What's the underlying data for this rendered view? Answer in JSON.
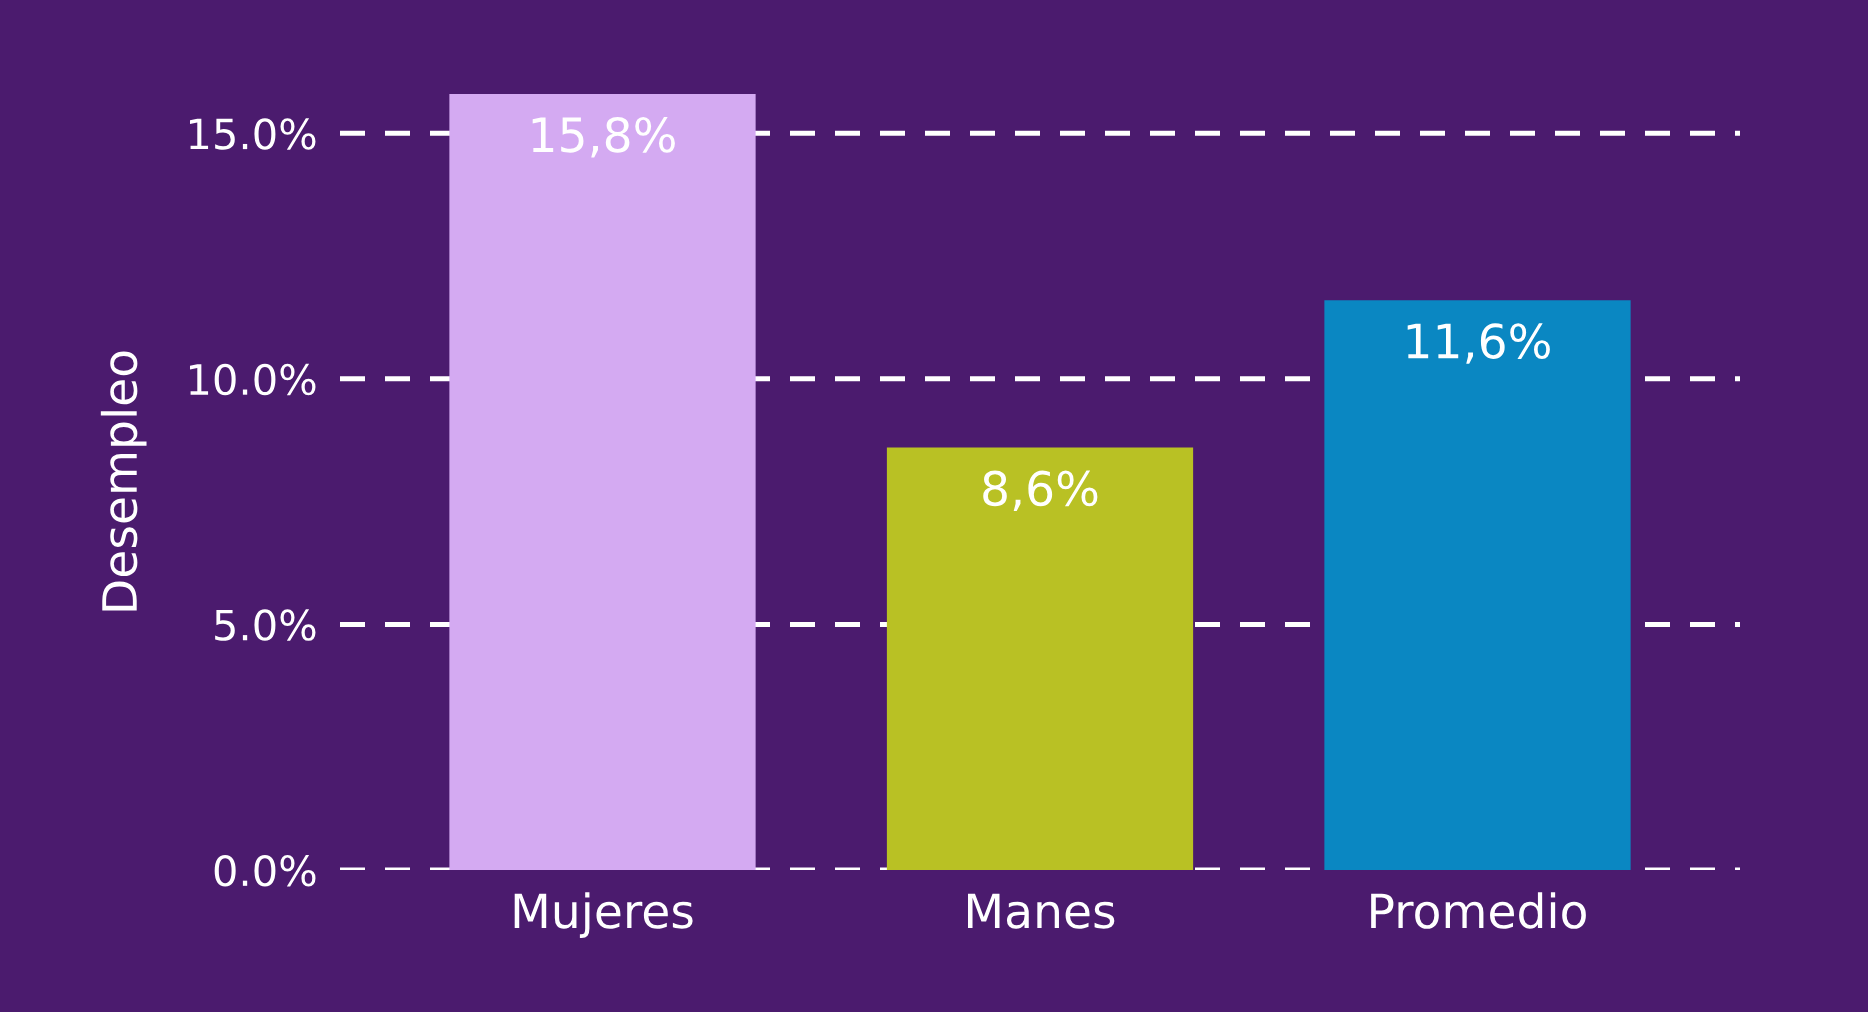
{
  "chart_data": {
    "type": "bar",
    "ylabel": "Desempleo",
    "categories": [
      "Mujeres",
      "Manes",
      "Promedio"
    ],
    "values": [
      15.8,
      8.6,
      11.6
    ],
    "colors": [
      "#d4aaf2",
      "#b9c124",
      "#0a87c2"
    ],
    "value_labels": [
      "15,8%",
      "8,6%",
      "11,6%"
    ],
    "yticks": [
      {
        "value": 0,
        "label": "0.0%"
      },
      {
        "value": 5,
        "label": "5.0%"
      },
      {
        "value": 10,
        "label": "10.0%"
      },
      {
        "value": 15,
        "label": "15.0%"
      }
    ],
    "ylim": [
      0,
      15.8
    ],
    "grid": "y",
    "line_style": "dashed"
  }
}
